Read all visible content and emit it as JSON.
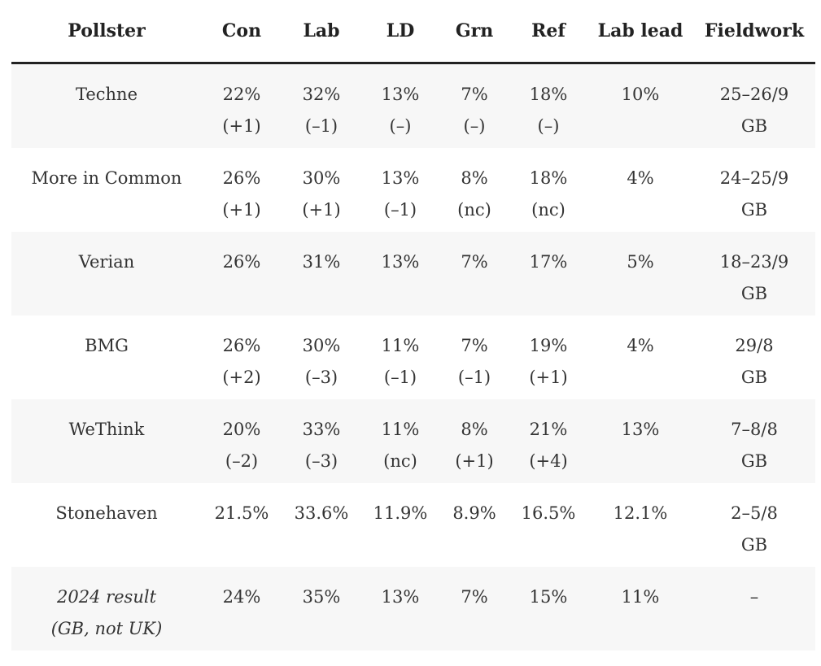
{
  "headers": [
    "Pollster",
    "Con",
    "Lab",
    "LD",
    "Grn",
    "Ref",
    "Lab lead",
    "Fieldwork"
  ],
  "rows": [
    {
      "pollster": [
        "Techne"
      ],
      "con": [
        "22%",
        "(+1)"
      ],
      "lab": [
        "32%",
        "(–1)"
      ],
      "ld": [
        "13%",
        "(–)"
      ],
      "grn": [
        "7%",
        "(–)"
      ],
      "ref": [
        "18%",
        "(–)"
      ],
      "lead": "10%",
      "fieldwork": [
        "25–26/9",
        "GB"
      ]
    },
    {
      "pollster": [
        "More in Common"
      ],
      "con": [
        "26%",
        "(+1)"
      ],
      "lab": [
        "30%",
        "(+1)"
      ],
      "ld": [
        "13%",
        "(–1)"
      ],
      "grn": [
        "8%",
        "(nc)"
      ],
      "ref": [
        "18%",
        "(nc)"
      ],
      "lead": "4%",
      "fieldwork": [
        "24–25/9",
        "GB"
      ]
    },
    {
      "pollster": [
        "Verian"
      ],
      "con": [
        "26%",
        ""
      ],
      "lab": [
        "31%",
        ""
      ],
      "ld": [
        "13%",
        ""
      ],
      "grn": [
        "7%",
        ""
      ],
      "ref": [
        "17%",
        ""
      ],
      "lead": "5%",
      "fieldwork": [
        "18–23/9",
        "GB"
      ]
    },
    {
      "pollster": [
        "BMG"
      ],
      "con": [
        "26%",
        "(+2)"
      ],
      "lab": [
        "30%",
        "(–3)"
      ],
      "ld": [
        "11%",
        "(–1)"
      ],
      "grn": [
        "7%",
        "(–1)"
      ],
      "ref": [
        "19%",
        "(+1)"
      ],
      "lead": "4%",
      "fieldwork": [
        "29/8",
        "GB"
      ]
    },
    {
      "pollster": [
        "WeThink"
      ],
      "con": [
        "20%",
        "(–2)"
      ],
      "lab": [
        "33%",
        "(–3)"
      ],
      "ld": [
        "11%",
        "(nc)"
      ],
      "grn": [
        "8%",
        "(+1)"
      ],
      "ref": [
        "21%",
        "(+4)"
      ],
      "lead": "13%",
      "fieldwork": [
        "7–8/8",
        "GB"
      ]
    },
    {
      "pollster": [
        "Stonehaven"
      ],
      "con": [
        "21.5%",
        ""
      ],
      "lab": [
        "33.6%",
        ""
      ],
      "ld": [
        "11.9%",
        ""
      ],
      "grn": [
        "8.9%",
        ""
      ],
      "ref": [
        "16.5%",
        ""
      ],
      "lead": "12.1%",
      "fieldwork": [
        "2–5/8",
        "GB"
      ]
    },
    {
      "pollster": [
        "2024 result",
        "(GB, not UK)"
      ],
      "italic": true,
      "con": [
        "24%",
        ""
      ],
      "lab": [
        "35%",
        ""
      ],
      "ld": [
        "13%",
        ""
      ],
      "grn": [
        "7%",
        ""
      ],
      "ref": [
        "15%",
        ""
      ],
      "lead": "11%",
      "fieldwork": [
        "–",
        ""
      ]
    }
  ]
}
